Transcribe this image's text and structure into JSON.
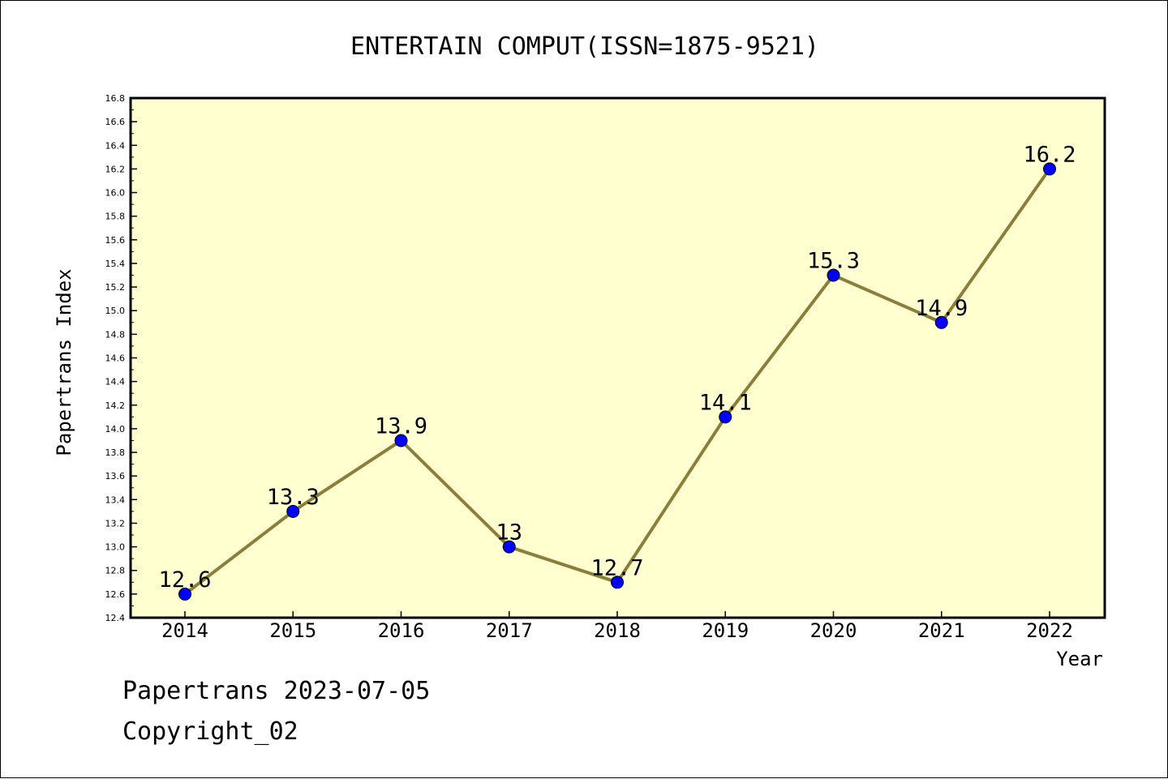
{
  "chart_data": {
    "type": "line",
    "title": "ENTERTAIN COMPUT(ISSN=1875-9521)",
    "xlabel": "Year",
    "ylabel": "Papertrans Index",
    "categories": [
      "2014",
      "2015",
      "2016",
      "2017",
      "2018",
      "2019",
      "2020",
      "2021",
      "2022"
    ],
    "series": [
      {
        "values": [
          12.6,
          13.3,
          13.9,
          13.0,
          12.7,
          14.1,
          15.3,
          14.9,
          16.2
        ],
        "data_labels": [
          "12.6",
          "13.3",
          "13.9",
          "13",
          "12.7",
          "14.1",
          "15.3",
          "14.9",
          "16.2"
        ]
      }
    ],
    "ylim": [
      12.4,
      16.8
    ],
    "y_ticks": [
      "12.4",
      "12.6",
      "12.8",
      "13.0",
      "13.2",
      "13.4",
      "13.6",
      "13.8",
      "14.0",
      "14.2",
      "14.4",
      "14.6",
      "14.8",
      "15.0",
      "15.2",
      "15.4",
      "15.6",
      "15.8",
      "16.0",
      "16.2",
      "16.4",
      "16.6",
      "16.8"
    ],
    "grid": false,
    "colors": {
      "plot_background": "#ffffd0",
      "line": "#8b7d3a",
      "marker": "#0000ff"
    }
  },
  "footer": {
    "line1": "Papertrans 2023-07-05",
    "line2": "Copyright_02"
  }
}
